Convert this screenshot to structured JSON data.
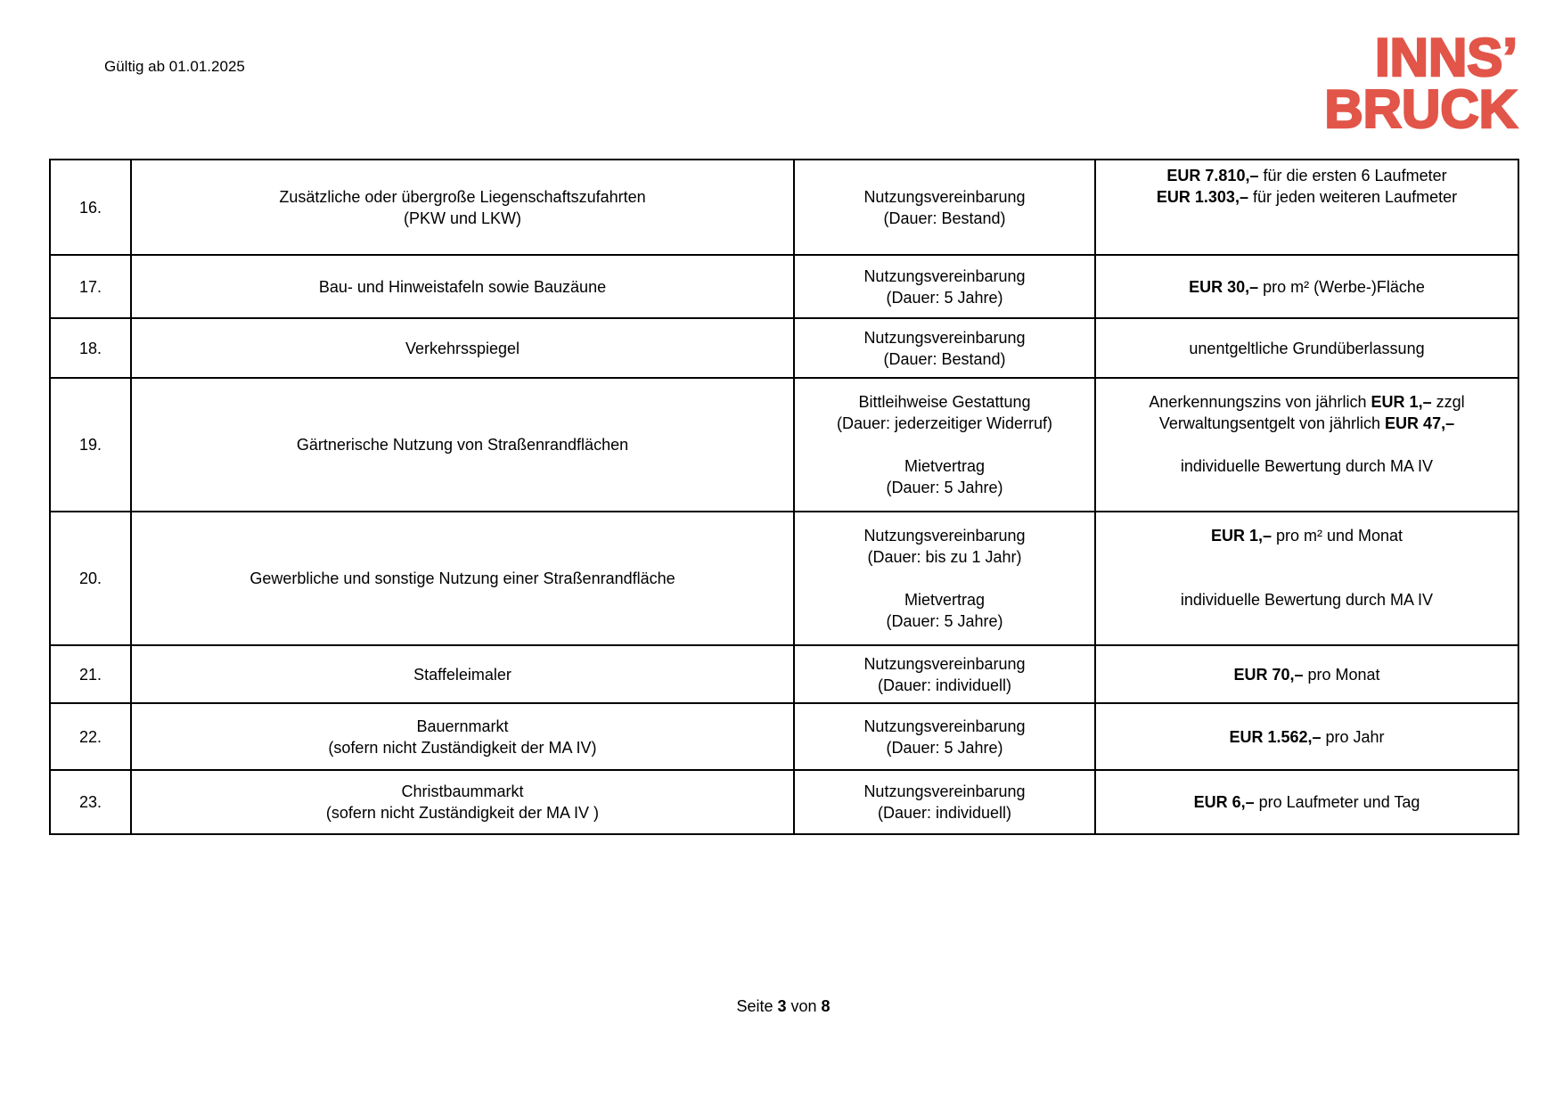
{
  "header": {
    "date": "Gültig ab 01.01.2025"
  },
  "logo": {
    "line1": "INNS’",
    "line2": "BRUCK",
    "color": "#e25549"
  },
  "table": {
    "rows": [
      {
        "nr": "16.",
        "object": [
          [
            {
              "text": "Zusätzliche oder übergroße Liegenschaftszufahrten",
              "bold": false
            }
          ],
          [
            {
              "text": "(PKW und LKW)",
              "bold": false
            }
          ]
        ],
        "agreement": [
          [
            {
              "text": "Nutzungsvereinbarung",
              "bold": false
            }
          ],
          [
            {
              "text": "(Dauer: Bestand)",
              "bold": false
            }
          ]
        ],
        "price": [
          [
            {
              "text": "EUR 7.810,–",
              "bold": true
            },
            {
              "text": " für die ersten 6 Laufmeter",
              "bold": false
            }
          ],
          [
            {
              "text": "EUR 1.303,–",
              "bold": true
            },
            {
              "text": " für jeden weiteren Laufmeter",
              "bold": false
            }
          ],
          [],
          []
        ]
      },
      {
        "nr": "17.",
        "object": [
          [
            {
              "text": "Bau- und Hinweistafeln sowie Bauzäune",
              "bold": false
            }
          ]
        ],
        "agreement": [
          [
            {
              "text": "Nutzungsvereinbarung",
              "bold": false
            }
          ],
          [
            {
              "text": "(Dauer: 5 Jahre)",
              "bold": false
            }
          ]
        ],
        "price": [
          [
            {
              "text": "EUR 30,–",
              "bold": true
            },
            {
              "text": " pro m² (Werbe-)Fläche",
              "bold": false
            }
          ]
        ]
      },
      {
        "nr": "18.",
        "object": [
          [
            {
              "text": "Verkehrsspiegel",
              "bold": false
            }
          ]
        ],
        "agreement": [
          [
            {
              "text": "Nutzungsvereinbarung",
              "bold": false
            }
          ],
          [
            {
              "text": "(Dauer: Bestand)",
              "bold": false
            }
          ]
        ],
        "price": [
          [
            {
              "text": "unentgeltliche Grundüberlassung",
              "bold": false
            }
          ]
        ]
      },
      {
        "nr": "19.",
        "object": [
          [
            {
              "text": "Gärtnerische Nutzung von Straßenrandflächen",
              "bold": false
            }
          ]
        ],
        "agreement": [
          [
            {
              "text": "Bittleihweise Gestattung",
              "bold": false
            }
          ],
          [
            {
              "text": "(Dauer: jederzeitiger Widerruf)",
              "bold": false
            }
          ],
          [],
          [
            {
              "text": "Mietvertrag",
              "bold": false
            }
          ],
          [
            {
              "text": "(Dauer: 5 Jahre)",
              "bold": false
            }
          ]
        ],
        "price": [
          [
            {
              "text": "Anerkennungszins von jährlich ",
              "bold": false
            },
            {
              "text": "EUR 1,–",
              "bold": true
            },
            {
              "text": " zzgl",
              "bold": false
            }
          ],
          [
            {
              "text": "Verwaltungsentgelt von jährlich ",
              "bold": false
            },
            {
              "text": "EUR 47,–",
              "bold": true
            }
          ],
          [],
          [
            {
              "text": "individuelle Bewertung durch MA IV",
              "bold": false
            }
          ],
          []
        ]
      },
      {
        "nr": "20.",
        "object": [
          [
            {
              "text": "Gewerbliche und sonstige Nutzung einer Straßenrandfläche",
              "bold": false
            }
          ]
        ],
        "agreement": [
          [
            {
              "text": "Nutzungsvereinbarung",
              "bold": false
            }
          ],
          [
            {
              "text": "(Dauer: bis zu 1 Jahr)",
              "bold": false
            }
          ],
          [],
          [
            {
              "text": "Mietvertrag",
              "bold": false
            }
          ],
          [
            {
              "text": "(Dauer: 5 Jahre)",
              "bold": false
            }
          ]
        ],
        "price": [
          [
            {
              "text": "EUR 1,–",
              "bold": true
            },
            {
              "text": " pro m² und Monat",
              "bold": false
            }
          ],
          [],
          [],
          [
            {
              "text": "individuelle Bewertung durch MA IV",
              "bold": false
            }
          ],
          []
        ]
      },
      {
        "nr": "21.",
        "object": [
          [
            {
              "text": "Staffeleimaler",
              "bold": false
            }
          ]
        ],
        "agreement": [
          [
            {
              "text": "Nutzungsvereinbarung",
              "bold": false
            }
          ],
          [
            {
              "text": "(Dauer: individuell)",
              "bold": false
            }
          ]
        ],
        "price": [
          [
            {
              "text": "EUR 70,–",
              "bold": true
            },
            {
              "text": " pro Monat",
              "bold": false
            }
          ]
        ]
      },
      {
        "nr": "22.",
        "object": [
          [
            {
              "text": "Bauernmarkt",
              "bold": false
            }
          ],
          [
            {
              "text": "(sofern nicht Zuständigkeit der MA IV)",
              "bold": false
            }
          ]
        ],
        "agreement": [
          [
            {
              "text": "Nutzungsvereinbarung",
              "bold": false
            }
          ],
          [
            {
              "text": "(Dauer: 5 Jahre)",
              "bold": false
            }
          ]
        ],
        "price": [
          [
            {
              "text": "EUR 1.562,–",
              "bold": true
            },
            {
              "text": " pro Jahr",
              "bold": false
            }
          ]
        ]
      },
      {
        "nr": "23.",
        "object": [
          [
            {
              "text": "Christbaummarkt",
              "bold": false
            }
          ],
          [
            {
              "text": "(sofern nicht Zuständigkeit der MA IV )",
              "bold": false
            }
          ]
        ],
        "agreement": [
          [
            {
              "text": "Nutzungsvereinbarung",
              "bold": false
            }
          ],
          [
            {
              "text": "(Dauer: individuell)",
              "bold": false
            }
          ]
        ],
        "price": [
          [
            {
              "text": "EUR 6,–",
              "bold": true
            },
            {
              "text": " pro Laufmeter und Tag",
              "bold": false
            }
          ]
        ]
      }
    ]
  },
  "footer": {
    "segments": [
      {
        "text": "Seite ",
        "bold": false
      },
      {
        "text": "3",
        "bold": true
      },
      {
        "text": " von ",
        "bold": false
      },
      {
        "text": "8",
        "bold": true
      }
    ]
  }
}
